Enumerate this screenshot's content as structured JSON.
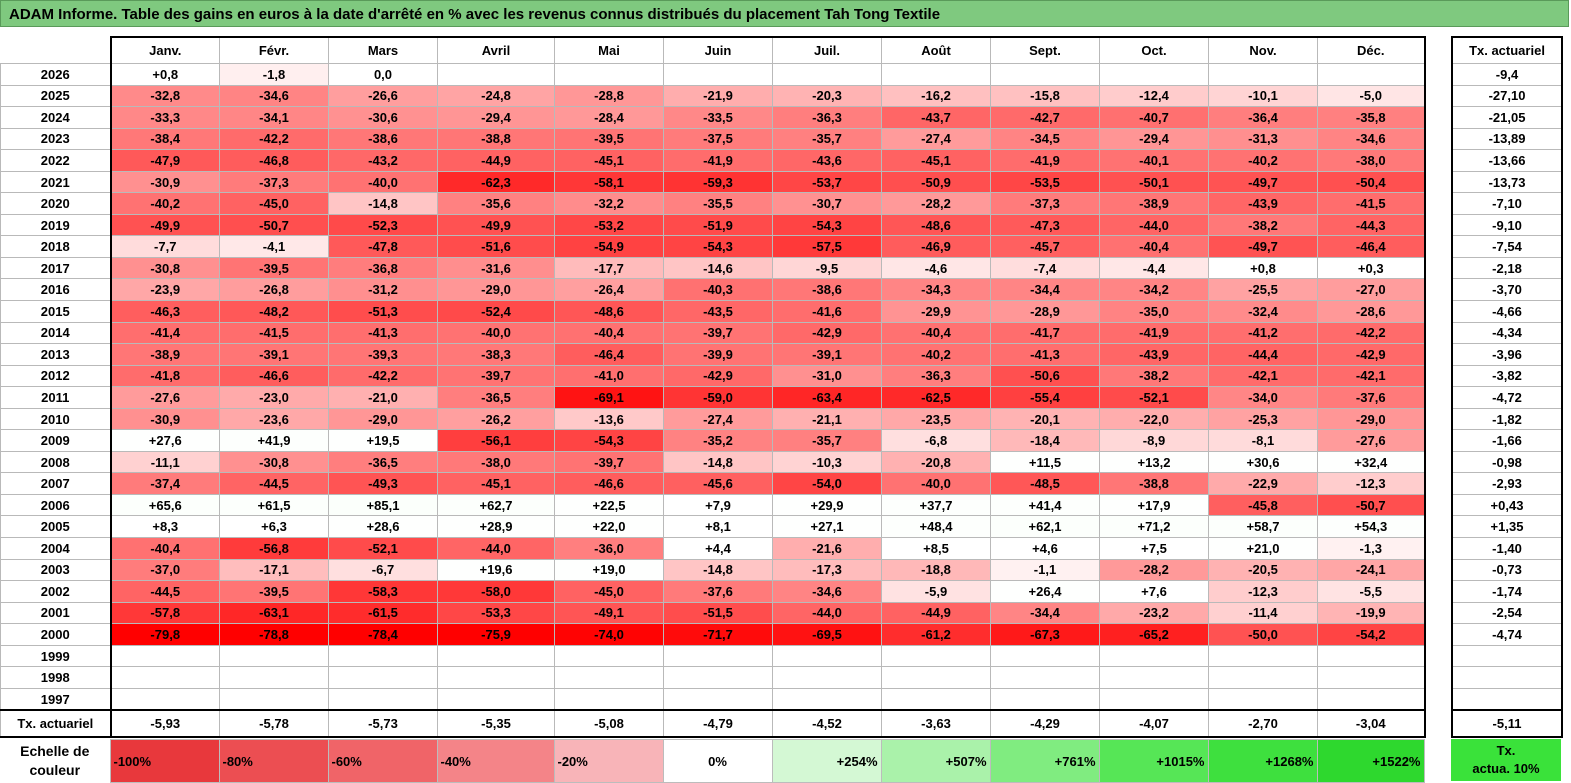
{
  "title": "ADAM Informe. Table des gains en euros à la date d'arrêté en % avec les revenus connus distribués du placement Tah Tong Textile",
  "months": [
    "Janv.",
    "Févr.",
    "Mars",
    "Avril",
    "Mai",
    "Juin",
    "Juil.",
    "Août",
    "Sept.",
    "Oct.",
    "Nov.",
    "Déc."
  ],
  "side_header": "Tx. actuariel",
  "rows": [
    {
      "year": "2026",
      "values": [
        "+0,8",
        "-1,8",
        "0,0",
        "",
        "",
        "",
        "",
        "",
        "",
        "",
        "",
        ""
      ],
      "tx": "-9,4"
    },
    {
      "year": "2025",
      "values": [
        "-32,8",
        "-34,6",
        "-26,6",
        "-24,8",
        "-28,8",
        "-21,9",
        "-20,3",
        "-16,2",
        "-15,8",
        "-12,4",
        "-10,1",
        "-5,0"
      ],
      "tx": "-27,10"
    },
    {
      "year": "2024",
      "values": [
        "-33,3",
        "-34,1",
        "-30,6",
        "-29,4",
        "-28,4",
        "-33,5",
        "-36,3",
        "-43,7",
        "-42,7",
        "-40,7",
        "-36,4",
        "-35,8"
      ],
      "tx": "-21,05"
    },
    {
      "year": "2023",
      "values": [
        "-38,4",
        "-42,2",
        "-38,6",
        "-38,8",
        "-39,5",
        "-37,5",
        "-35,7",
        "-27,4",
        "-34,5",
        "-29,4",
        "-31,3",
        "-34,6"
      ],
      "tx": "-13,89"
    },
    {
      "year": "2022",
      "values": [
        "-47,9",
        "-46,8",
        "-43,2",
        "-44,9",
        "-45,1",
        "-41,9",
        "-43,6",
        "-45,1",
        "-41,9",
        "-40,1",
        "-40,2",
        "-38,0"
      ],
      "tx": "-13,66"
    },
    {
      "year": "2021",
      "values": [
        "-30,9",
        "-37,3",
        "-40,0",
        "-62,3",
        "-58,1",
        "-59,3",
        "-53,7",
        "-50,9",
        "-53,5",
        "-50,1",
        "-49,7",
        "-50,4"
      ],
      "tx": "-13,73"
    },
    {
      "year": "2020",
      "values": [
        "-40,2",
        "-45,0",
        "-14,8",
        "-35,6",
        "-32,2",
        "-35,5",
        "-30,7",
        "-28,2",
        "-37,3",
        "-38,9",
        "-43,9",
        "-41,5"
      ],
      "tx": "-7,10"
    },
    {
      "year": "2019",
      "values": [
        "-49,9",
        "-50,7",
        "-52,3",
        "-49,9",
        "-53,2",
        "-51,9",
        "-54,3",
        "-48,6",
        "-47,3",
        "-44,0",
        "-38,2",
        "-44,3"
      ],
      "tx": "-9,10"
    },
    {
      "year": "2018",
      "values": [
        "-7,7",
        "-4,1",
        "-47,8",
        "-51,6",
        "-54,9",
        "-54,3",
        "-57,5",
        "-46,9",
        "-45,7",
        "-40,4",
        "-49,7",
        "-46,4"
      ],
      "tx": "-7,54"
    },
    {
      "year": "2017",
      "values": [
        "-30,8",
        "-39,5",
        "-36,8",
        "-31,6",
        "-17,7",
        "-14,6",
        "-9,5",
        "-4,6",
        "-7,4",
        "-4,4",
        "+0,8",
        "+0,3"
      ],
      "tx": "-2,18"
    },
    {
      "year": "2016",
      "values": [
        "-23,9",
        "-26,8",
        "-31,2",
        "-29,0",
        "-26,4",
        "-40,3",
        "-38,6",
        "-34,3",
        "-34,4",
        "-34,2",
        "-25,5",
        "-27,0"
      ],
      "tx": "-3,70"
    },
    {
      "year": "2015",
      "values": [
        "-46,3",
        "-48,2",
        "-51,3",
        "-52,4",
        "-48,6",
        "-43,5",
        "-41,6",
        "-29,9",
        "-28,9",
        "-35,0",
        "-32,4",
        "-28,6"
      ],
      "tx": "-4,66"
    },
    {
      "year": "2014",
      "values": [
        "-41,4",
        "-41,5",
        "-41,3",
        "-40,0",
        "-40,4",
        "-39,7",
        "-42,9",
        "-40,4",
        "-41,7",
        "-41,9",
        "-41,2",
        "-42,2"
      ],
      "tx": "-4,34"
    },
    {
      "year": "2013",
      "values": [
        "-38,9",
        "-39,1",
        "-39,3",
        "-38,3",
        "-46,4",
        "-39,9",
        "-39,1",
        "-40,2",
        "-41,3",
        "-43,9",
        "-44,4",
        "-42,9"
      ],
      "tx": "-3,96"
    },
    {
      "year": "2012",
      "values": [
        "-41,8",
        "-46,6",
        "-42,2",
        "-39,7",
        "-41,0",
        "-42,9",
        "-31,0",
        "-36,3",
        "-50,6",
        "-38,2",
        "-42,1",
        "-42,1"
      ],
      "tx": "-3,82"
    },
    {
      "year": "2011",
      "values": [
        "-27,6",
        "-23,0",
        "-21,0",
        "-36,5",
        "-69,1",
        "-59,0",
        "-63,4",
        "-62,5",
        "-55,4",
        "-52,1",
        "-34,0",
        "-37,6"
      ],
      "tx": "-4,72"
    },
    {
      "year": "2010",
      "values": [
        "-30,9",
        "-23,6",
        "-29,0",
        "-26,2",
        "-13,6",
        "-27,4",
        "-21,1",
        "-23,5",
        "-20,1",
        "-22,0",
        "-25,3",
        "-29,0"
      ],
      "tx": "-1,82"
    },
    {
      "year": "2009",
      "values": [
        "+27,6",
        "+41,9",
        "+19,5",
        "-56,1",
        "-54,3",
        "-35,2",
        "-35,7",
        "-6,8",
        "-18,4",
        "-8,9",
        "-8,1",
        "-27,6"
      ],
      "tx": "-1,66"
    },
    {
      "year": "2008",
      "values": [
        "-11,1",
        "-30,8",
        "-36,5",
        "-38,0",
        "-39,7",
        "-14,8",
        "-10,3",
        "-20,8",
        "+11,5",
        "+13,2",
        "+30,6",
        "+32,4"
      ],
      "tx": "-0,98"
    },
    {
      "year": "2007",
      "values": [
        "-37,4",
        "-44,5",
        "-49,3",
        "-45,1",
        "-46,6",
        "-45,6",
        "-54,0",
        "-40,0",
        "-48,5",
        "-38,8",
        "-22,9",
        "-12,3"
      ],
      "tx": "-2,93"
    },
    {
      "year": "2006",
      "values": [
        "+65,6",
        "+61,5",
        "+85,1",
        "+62,7",
        "+22,5",
        "+7,9",
        "+29,9",
        "+37,7",
        "+41,4",
        "+17,9",
        "-45,8",
        "-50,7"
      ],
      "tx": "+0,43"
    },
    {
      "year": "2005",
      "values": [
        "+8,3",
        "+6,3",
        "+28,6",
        "+28,9",
        "+22,0",
        "+8,1",
        "+27,1",
        "+48,4",
        "+62,1",
        "+71,2",
        "+58,7",
        "+54,3"
      ],
      "tx": "+1,35"
    },
    {
      "year": "2004",
      "values": [
        "-40,4",
        "-56,8",
        "-52,1",
        "-44,0",
        "-36,0",
        "+4,4",
        "-21,6",
        "+8,5",
        "+4,6",
        "+7,5",
        "+21,0",
        "-1,3"
      ],
      "tx": "-1,40"
    },
    {
      "year": "2003",
      "values": [
        "-37,0",
        "-17,1",
        "-6,7",
        "+19,6",
        "+19,0",
        "-14,8",
        "-17,3",
        "-18,8",
        "-1,1",
        "-28,2",
        "-20,5",
        "-24,1"
      ],
      "tx": "-0,73"
    },
    {
      "year": "2002",
      "values": [
        "-44,5",
        "-39,5",
        "-58,3",
        "-58,0",
        "-45,0",
        "-37,6",
        "-34,6",
        "-5,9",
        "+26,4",
        "+7,6",
        "-12,3",
        "-5,5"
      ],
      "tx": "-1,74"
    },
    {
      "year": "2001",
      "values": [
        "-57,8",
        "-63,1",
        "-61,5",
        "-53,3",
        "-49,1",
        "-51,5",
        "-44,0",
        "-44,9",
        "-34,4",
        "-23,2",
        "-11,4",
        "-19,9"
      ],
      "tx": "-2,54"
    },
    {
      "year": "2000",
      "values": [
        "-79,8",
        "-78,8",
        "-78,4",
        "-75,9",
        "-74,0",
        "-71,7",
        "-69,5",
        "-61,2",
        "-67,3",
        "-65,2",
        "-50,0",
        "-54,2"
      ],
      "tx": "-4,74"
    },
    {
      "year": "1999",
      "values": [
        "",
        "",
        "",
        "",
        "",
        "",
        "",
        "",
        "",
        "",
        "",
        ""
      ],
      "tx": ""
    },
    {
      "year": "1998",
      "values": [
        "",
        "",
        "",
        "",
        "",
        "",
        "",
        "",
        "",
        "",
        "",
        ""
      ],
      "tx": ""
    },
    {
      "year": "1997",
      "values": [
        "",
        "",
        "",
        "",
        "",
        "",
        "",
        "",
        "",
        "",
        "",
        ""
      ],
      "tx": ""
    }
  ],
  "footer": {
    "label": "Tx. actuariel",
    "values": [
      "-5,93",
      "-5,78",
      "-5,73",
      "-5,35",
      "-5,08",
      "-4,79",
      "-4,52",
      "-3,63",
      "-4,29",
      "-4,07",
      "-2,70",
      "-3,04"
    ],
    "tx": "-5,11"
  },
  "scale": {
    "label_line1": "Echelle de",
    "label_line2": "couleur",
    "items": [
      {
        "label": "-100%",
        "color": "#e8383c",
        "kind": "neg"
      },
      {
        "label": "-80%",
        "color": "#ec4e52",
        "kind": "neg"
      },
      {
        "label": "-60%",
        "color": "#f06468",
        "kind": "neg"
      },
      {
        "label": "-40%",
        "color": "#f48488",
        "kind": "neg"
      },
      {
        "label": "-20%",
        "color": "#f8b4b8",
        "kind": "neg"
      },
      {
        "label": "0%",
        "color": "#ffffff",
        "kind": "zero"
      },
      {
        "label": "+254%",
        "color": "#d4f8d4",
        "kind": "pos"
      },
      {
        "label": "+507%",
        "color": "#aaf2aa",
        "kind": "pos"
      },
      {
        "label": "+761%",
        "color": "#80ec80",
        "kind": "pos"
      },
      {
        "label": "+1015%",
        "color": "#56e656",
        "kind": "pos"
      },
      {
        "label": "+1268%",
        "color": "#3ee03e",
        "kind": "pos"
      },
      {
        "label": "+1522%",
        "color": "#2ed82e",
        "kind": "pos"
      }
    ],
    "tx_line1": "Tx.",
    "tx_line2": "actua. 10%",
    "tx_color": "#3ae23a"
  },
  "colors": {
    "negative_max": "#ff0000",
    "positive_max": "#22cc22",
    "title_bg": "#7fc97f"
  }
}
